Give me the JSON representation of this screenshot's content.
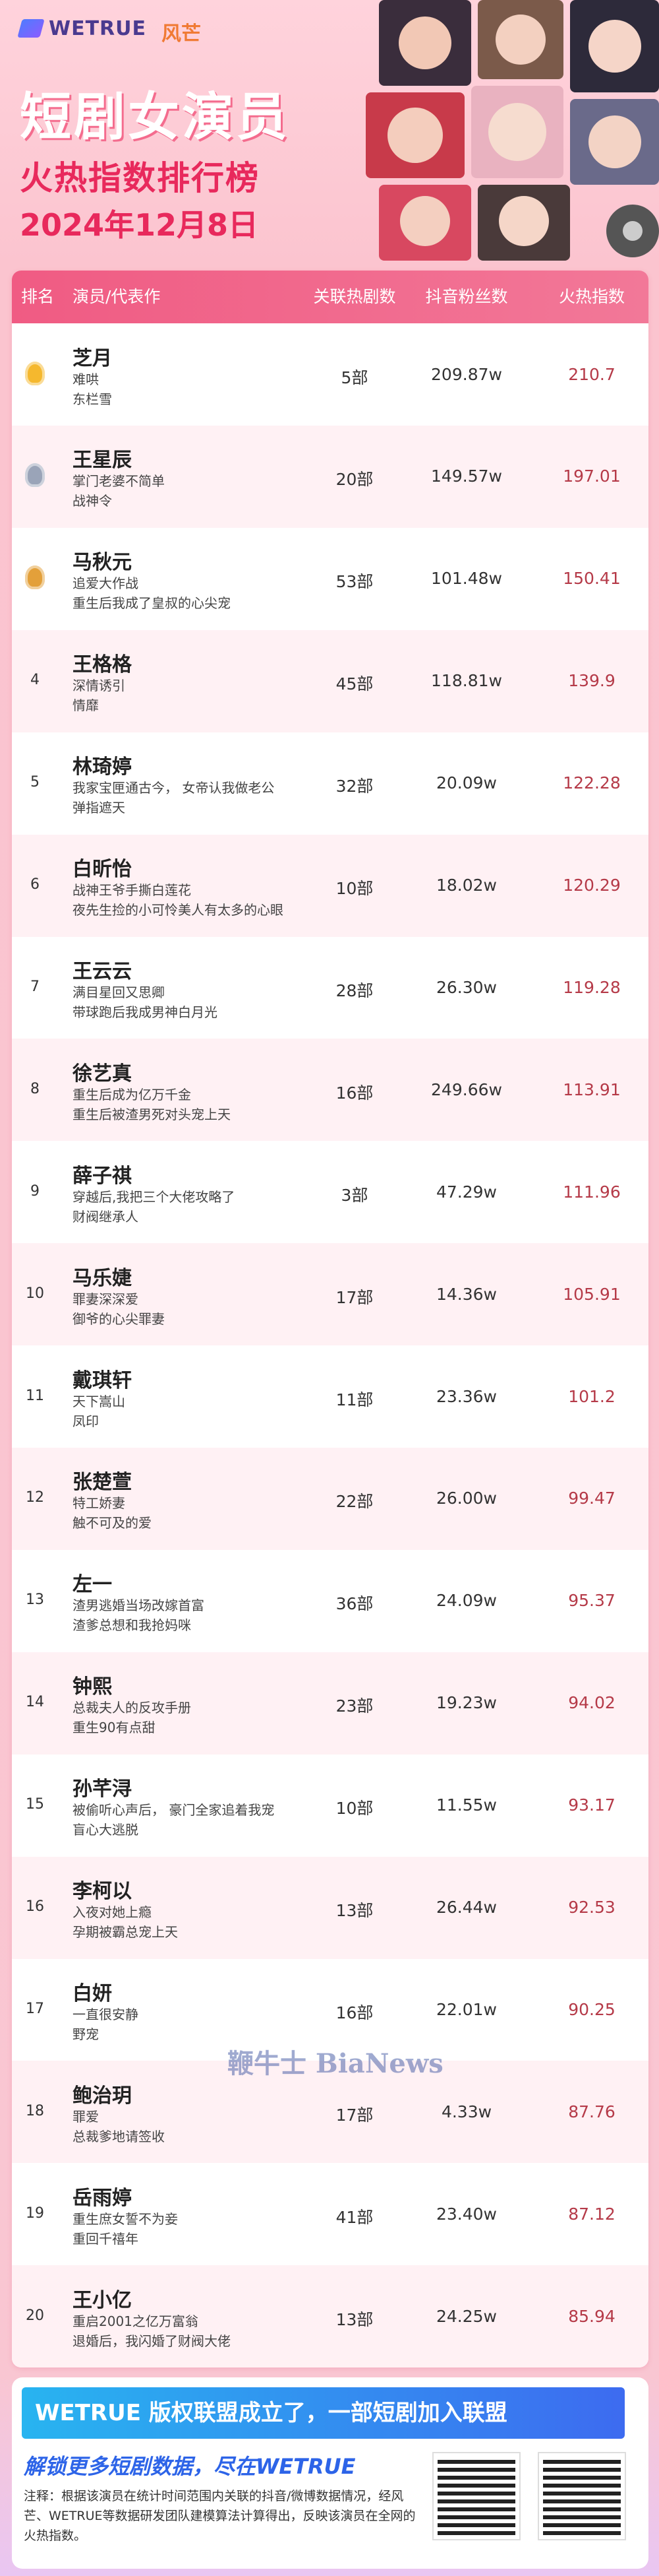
{
  "header": {
    "logo_left": "WETRUE",
    "logo_right": "风芒",
    "title": "短剧女演员",
    "subtitle": "火热指数排行榜",
    "date": "2024年12月8日"
  },
  "table": {
    "columns": [
      "排名",
      "演员/代表作",
      "关联热剧数",
      "抖音粉丝数",
      "火热指数"
    ],
    "rows": [
      {
        "name": "芝月",
        "works": [
          "难哄",
          "东栏雪"
        ],
        "dramas": "5部",
        "fans": "209.87w",
        "index": "210.7"
      },
      {
        "name": "王星辰",
        "works": [
          "掌门老婆不简单",
          "战神令"
        ],
        "dramas": "20部",
        "fans": "149.57w",
        "index": "197.01"
      },
      {
        "name": "马秋元",
        "works": [
          "追爱大作战",
          "重生后我成了皇叔的心尖宠"
        ],
        "dramas": "53部",
        "fans": "101.48w",
        "index": "150.41"
      },
      {
        "rank": "4",
        "name": "王格格",
        "works": [
          "深情诱引",
          "情靡"
        ],
        "dramas": "45部",
        "fans": "118.81w",
        "index": "139.9"
      },
      {
        "rank": "5",
        "name": "林琦婷",
        "works": [
          "我家宝匣通古今， 女帝认我做老公",
          "弹指遮天"
        ],
        "dramas": "32部",
        "fans": "20.09w",
        "index": "122.28"
      },
      {
        "rank": "6",
        "name": "白昕怡",
        "works": [
          "战神王爷手撕白莲花",
          "夜先生捡的小可怜美人有太多的心眼"
        ],
        "dramas": "10部",
        "fans": "18.02w",
        "index": "120.29"
      },
      {
        "rank": "7",
        "name": "王云云",
        "works": [
          "满目星回又思卿",
          "带球跑后我成男神白月光"
        ],
        "dramas": "28部",
        "fans": "26.30w",
        "index": "119.28"
      },
      {
        "rank": "8",
        "name": "徐艺真",
        "works": [
          "重生后成为亿万千金",
          "重生后被渣男死对头宠上天"
        ],
        "dramas": "16部",
        "fans": "249.66w",
        "index": "113.91"
      },
      {
        "rank": "9",
        "name": "薛子祺",
        "works": [
          "穿越后,我把三个大佬攻略了",
          "财阀继承人"
        ],
        "dramas": "3部",
        "fans": "47.29w",
        "index": "111.96"
      },
      {
        "rank": "10",
        "name": "马乐婕",
        "works": [
          "罪妻深深爱",
          "御爷的心尖罪妻"
        ],
        "dramas": "17部",
        "fans": "14.36w",
        "index": "105.91"
      },
      {
        "rank": "11",
        "name": "戴琪轩",
        "works": [
          "天下嵩山",
          "凤印"
        ],
        "dramas": "11部",
        "fans": "23.36w",
        "index": "101.2"
      },
      {
        "rank": "12",
        "name": "张楚萱",
        "works": [
          "特工娇妻",
          "触不可及的爱"
        ],
        "dramas": "22部",
        "fans": "26.00w",
        "index": "99.47"
      },
      {
        "rank": "13",
        "name": "左一",
        "works": [
          "渣男逃婚当场改嫁首富",
          "渣爹总想和我抢妈咪"
        ],
        "dramas": "36部",
        "fans": "24.09w",
        "index": "95.37"
      },
      {
        "rank": "14",
        "name": "钟熙",
        "works": [
          "总裁夫人的反攻手册",
          "重生90有点甜"
        ],
        "dramas": "23部",
        "fans": "19.23w",
        "index": "94.02"
      },
      {
        "rank": "15",
        "name": "孙芊浔",
        "works": [
          "被偷听心声后， 豪门全家追着我宠",
          "盲心大逃脱"
        ],
        "dramas": "10部",
        "fans": "11.55w",
        "index": "93.17"
      },
      {
        "rank": "16",
        "name": "李柯以",
        "works": [
          "入夜对她上瘾",
          "孕期被霸总宠上天"
        ],
        "dramas": "13部",
        "fans": "26.44w",
        "index": "92.53"
      },
      {
        "rank": "17",
        "name": "白妍",
        "works": [
          "一直很安静",
          "野宠"
        ],
        "dramas": "16部",
        "fans": "22.01w",
        "index": "90.25"
      },
      {
        "rank": "18",
        "name": "鲍治玥",
        "works": [
          "罪爱",
          "总裁爹地请签收"
        ],
        "dramas": "17部",
        "fans": "4.33w",
        "index": "87.76"
      },
      {
        "rank": "19",
        "name": "岳雨婷",
        "works": [
          "重生庶女誓不为妾",
          "重回千禧年"
        ],
        "dramas": "41部",
        "fans": "23.40w",
        "index": "87.12"
      },
      {
        "rank": "20",
        "name": "王小亿",
        "works": [
          "重启2001之亿万富翁",
          "退婚后，我闪婚了财阀大佬"
        ],
        "dramas": "13部",
        "fans": "24.25w",
        "index": "85.94"
      }
    ]
  },
  "watermark": "鞭牛士 BiaNews",
  "footer": {
    "banner": "WETRUE 版权联盟成立了，一部短剧加入联盟",
    "slogan": "解锁更多短剧数据，尽在WETRUE",
    "note": "注释：根据该演员在统计时间范围内关联的抖音/微博数据情况，经风芒、WETRUE等数据研发团队建模算法计算得出，反映该演员在全网的火热指数。"
  }
}
